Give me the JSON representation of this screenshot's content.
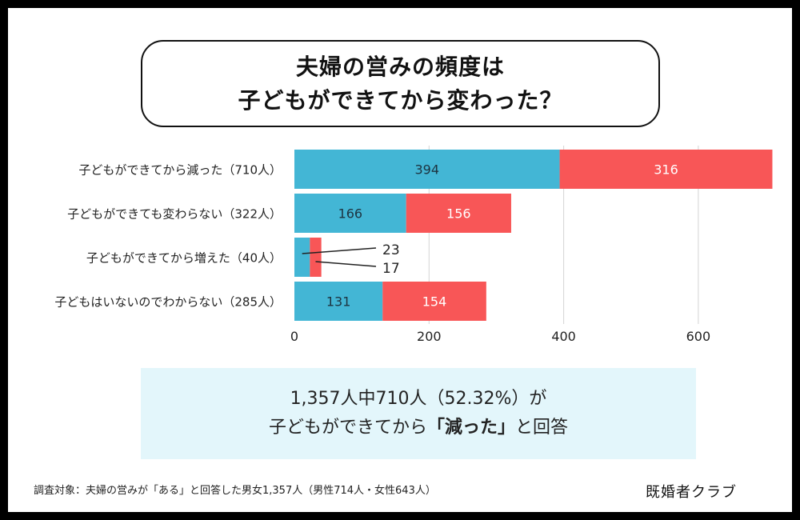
{
  "title": {
    "line1": "夫婦の営みの頻度は",
    "line2": "子どもができてから変わった？"
  },
  "chart_data": {
    "type": "bar",
    "orientation": "horizontal",
    "stacked": true,
    "categories": [
      "子どもができてから減った（710人）",
      "子どもができても変わらない（322人）",
      "子どもができてから増えた（40人）",
      "子どもはいないのでわからない（285人）"
    ],
    "series": [
      {
        "values": [
          394,
          166,
          23,
          131
        ],
        "color": "#43b6d5"
      },
      {
        "values": [
          316,
          156,
          17,
          154
        ],
        "color": "#f85657"
      }
    ],
    "xticks": [
      "0",
      "200",
      "400",
      "600"
    ],
    "xlim": [
      0,
      710
    ],
    "grid": true,
    "legend": "none"
  },
  "summary": {
    "line1": "1,357人中710人（52.32%）が",
    "line2_prefix": "子どもができてから",
    "line2_bracket_open": "「",
    "line2_emphasis": "減った",
    "line2_bracket_close": "」",
    "line2_suffix": "と回答"
  },
  "footnote": "調査対象：夫婦の営みが「ある」と回答した男女1,357人（男性714人・女性643人）",
  "brand": "既婚者クラブ"
}
